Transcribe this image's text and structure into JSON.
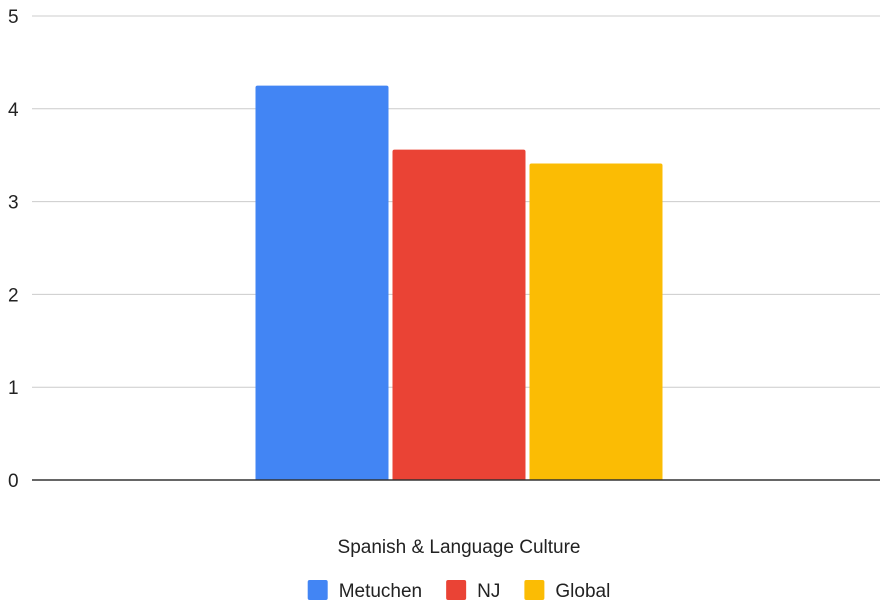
{
  "chart_data": {
    "type": "bar",
    "categories": [
      "Spanish & Language Culture"
    ],
    "series": [
      {
        "name": "Metuchen",
        "values": [
          4.25
        ],
        "color": "#4285F4"
      },
      {
        "name": "NJ",
        "values": [
          3.56
        ],
        "color": "#EA4335"
      },
      {
        "name": "Global",
        "values": [
          3.41
        ],
        "color": "#FBBC04"
      }
    ],
    "title": "",
    "xlabel": "",
    "ylabel": "",
    "ylim": [
      0,
      5
    ],
    "yticks": [
      "0",
      "1",
      "2",
      "3",
      "4",
      "5"
    ],
    "grid": true,
    "legend_position": "bottom"
  }
}
